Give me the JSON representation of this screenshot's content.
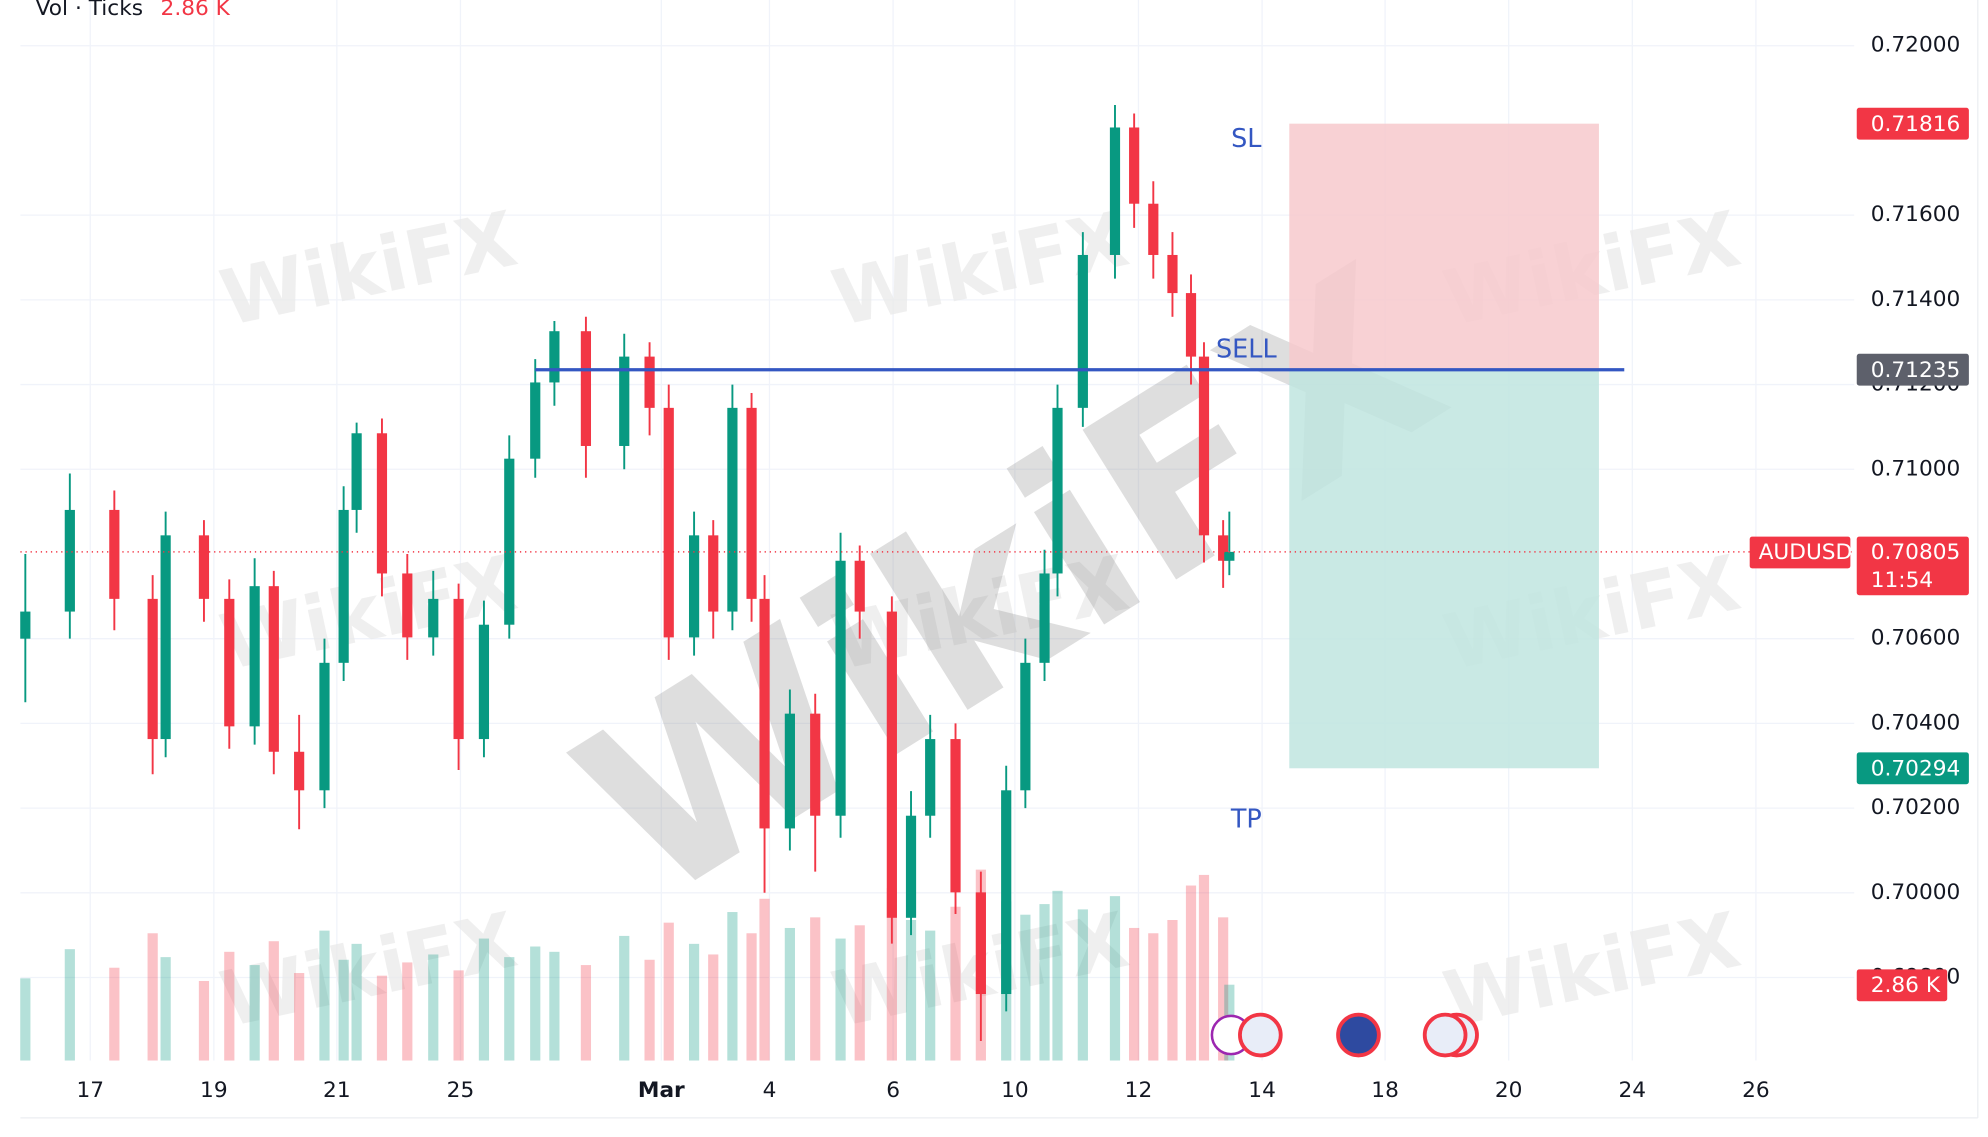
{
  "chart_data": {
    "type": "candlestick",
    "indicator": "Vol · Ticks",
    "symbol": "AUDUSD",
    "countdown": "11:54",
    "watermark": "WikiFX",
    "colors": {
      "up": "#089981",
      "down": "#f23645",
      "entry": "#3457c2",
      "stop_zone": "#f7c9cc",
      "target_zone": "#bfe5df",
      "entry_label": "#5d606b"
    },
    "x": [
      -1.05,
      -0.33,
      0.39,
      1.01,
      1.22,
      1.84,
      2.25,
      2.66,
      2.97,
      3.38,
      3.79,
      4.1,
      4.31,
      4.72,
      5.13,
      5.55,
      5.96,
      6.37,
      6.78,
      7.2,
      7.51,
      8.02,
      8.64,
      9.05,
      9.36,
      9.77,
      10.08,
      10.39,
      10.7,
      10.91,
      11.32,
      11.73,
      12.14,
      12.45,
      12.97,
      13.28,
      13.59,
      14.0,
      14.41,
      14.82,
      15.13,
      15.44,
      15.65,
      16.06,
      16.58,
      16.89,
      17.2,
      17.51,
      17.81,
      18.02,
      18.33,
      18.43
    ],
    "open": [
      0.706,
      0.70664,
      0.70904,
      0.70694,
      0.70363,
      0.70844,
      0.70694,
      0.70393,
      0.70724,
      0.70333,
      0.70242,
      0.70543,
      0.70904,
      0.71085,
      0.70754,
      0.70603,
      0.70694,
      0.70363,
      0.70633,
      0.71025,
      0.71205,
      0.71326,
      0.71055,
      0.71266,
      0.71145,
      0.70603,
      0.70844,
      0.70664,
      0.71145,
      0.70694,
      0.70152,
      0.70423,
      0.70182,
      0.70784,
      0.70664,
      0.69941,
      0.70182,
      0.70363,
      0.70001,
      0.69761,
      0.70242,
      0.70543,
      0.70754,
      0.71145,
      0.71506,
      0.71807,
      0.71627,
      0.71506,
      0.71416,
      0.71266,
      0.70844,
      0.70784
    ],
    "high": [
      0.708,
      0.7099,
      0.7095,
      0.7075,
      0.709,
      0.7088,
      0.7074,
      0.7079,
      0.7076,
      0.7042,
      0.706,
      0.7096,
      0.7111,
      0.7112,
      0.708,
      0.7076,
      0.7073,
      0.7069,
      0.7108,
      0.7126,
      0.7135,
      0.7136,
      0.7132,
      0.713,
      0.712,
      0.709,
      0.7088,
      0.712,
      0.7118,
      0.7075,
      0.7048,
      0.7047,
      0.7085,
      0.7082,
      0.707,
      0.7024,
      0.7042,
      0.704,
      0.7005,
      0.703,
      0.706,
      0.7081,
      0.712,
      0.7156,
      0.7186,
      0.7184,
      0.7168,
      0.7156,
      0.7146,
      0.713,
      0.7088,
      0.709
    ],
    "low": [
      0.7045,
      0.706,
      0.7062,
      0.7028,
      0.7032,
      0.7064,
      0.7034,
      0.7035,
      0.7028,
      0.7015,
      0.702,
      0.705,
      0.7085,
      0.707,
      0.7055,
      0.7056,
      0.7029,
      0.7032,
      0.706,
      0.7098,
      0.7115,
      0.7098,
      0.71,
      0.7108,
      0.7055,
      0.7056,
      0.706,
      0.7062,
      0.7064,
      0.7,
      0.701,
      0.7005,
      0.7013,
      0.706,
      0.6988,
      0.699,
      0.7013,
      0.6995,
      0.6965,
      0.6972,
      0.702,
      0.705,
      0.707,
      0.711,
      0.7145,
      0.7157,
      0.7145,
      0.7136,
      0.712,
      0.7078,
      0.7072,
      0.7075
    ],
    "close": [
      0.70664,
      0.70904,
      0.70694,
      0.70363,
      0.70844,
      0.70694,
      0.70393,
      0.70724,
      0.70333,
      0.70242,
      0.70543,
      0.70904,
      0.71085,
      0.70754,
      0.70603,
      0.70694,
      0.70363,
      0.70633,
      0.71025,
      0.71205,
      0.71326,
      0.71055,
      0.71266,
      0.71145,
      0.70603,
      0.70844,
      0.70664,
      0.71145,
      0.70694,
      0.70152,
      0.70423,
      0.70182,
      0.70784,
      0.70664,
      0.69941,
      0.70182,
      0.70363,
      0.70001,
      0.69761,
      0.70242,
      0.70543,
      0.70754,
      0.71145,
      0.71506,
      0.71807,
      0.71627,
      0.71506,
      0.71416,
      0.71266,
      0.70844,
      0.70784,
      0.70805
    ],
    "volume": [
      3.1,
      4.2,
      3.5,
      4.8,
      3.9,
      3.0,
      4.1,
      3.6,
      4.5,
      3.3,
      4.9,
      3.8,
      4.4,
      3.2,
      3.7,
      4.0,
      3.4,
      4.6,
      3.9,
      4.3,
      4.1,
      3.6,
      4.7,
      3.8,
      5.2,
      4.4,
      4.0,
      5.6,
      4.8,
      6.1,
      5.0,
      5.4,
      4.6,
      5.1,
      6.5,
      5.3,
      4.9,
      5.8,
      7.2,
      6.0,
      5.5,
      5.9,
      6.4,
      5.7,
      6.2,
      5.0,
      4.8,
      5.3,
      6.6,
      7.0,
      5.4,
      2.86
    ],
    "volume_label": "2.86 K",
    "volume_ylim": [
      0,
      40
    ],
    "last_price": 0.70805,
    "position": {
      "entry": 0.71235,
      "stop": 0.71816,
      "target": 0.70294,
      "start": 19.4,
      "end": 24.41,
      "line_start": 7.2,
      "line_end": 24.82,
      "stop_text": "SL",
      "entry_text": "SELL",
      "target_text": "TP"
    },
    "xlim": [
      -1.13,
      28.54
    ],
    "xticks": [
      {
        "value": 0,
        "label": "17"
      },
      {
        "value": 2,
        "label": "19"
      },
      {
        "value": 3.99,
        "label": "21"
      },
      {
        "value": 5.99,
        "label": "25"
      },
      {
        "value": 9.24,
        "label": "Mar"
      },
      {
        "value": 10.99,
        "label": "4"
      },
      {
        "value": 12.99,
        "label": "6"
      },
      {
        "value": 14.96,
        "label": "10"
      },
      {
        "value": 16.96,
        "label": "12"
      },
      {
        "value": 18.96,
        "label": "14"
      },
      {
        "value": 20.95,
        "label": "18"
      },
      {
        "value": 22.95,
        "label": "20"
      },
      {
        "value": 24.95,
        "label": "24"
      },
      {
        "value": 26.95,
        "label": "26"
      }
    ],
    "ylim": [
      0.69604,
      0.72108
    ],
    "yticks": [
      {
        "value": 0.72,
        "label": "0.72000"
      },
      {
        "value": 0.716,
        "label": "0.71600"
      },
      {
        "value": 0.714,
        "label": "0.71400"
      },
      {
        "value": 0.712,
        "label": "0.71200"
      },
      {
        "value": 0.71,
        "label": "0.71000"
      },
      {
        "value": 0.706,
        "label": "0.70600"
      },
      {
        "value": 0.704,
        "label": "0.70400"
      },
      {
        "value": 0.702,
        "label": "0.70200"
      },
      {
        "value": 0.7,
        "label": "0.70000"
      },
      {
        "value": 0.698,
        "label": "0.69800"
      }
    ],
    "grid": true
  }
}
